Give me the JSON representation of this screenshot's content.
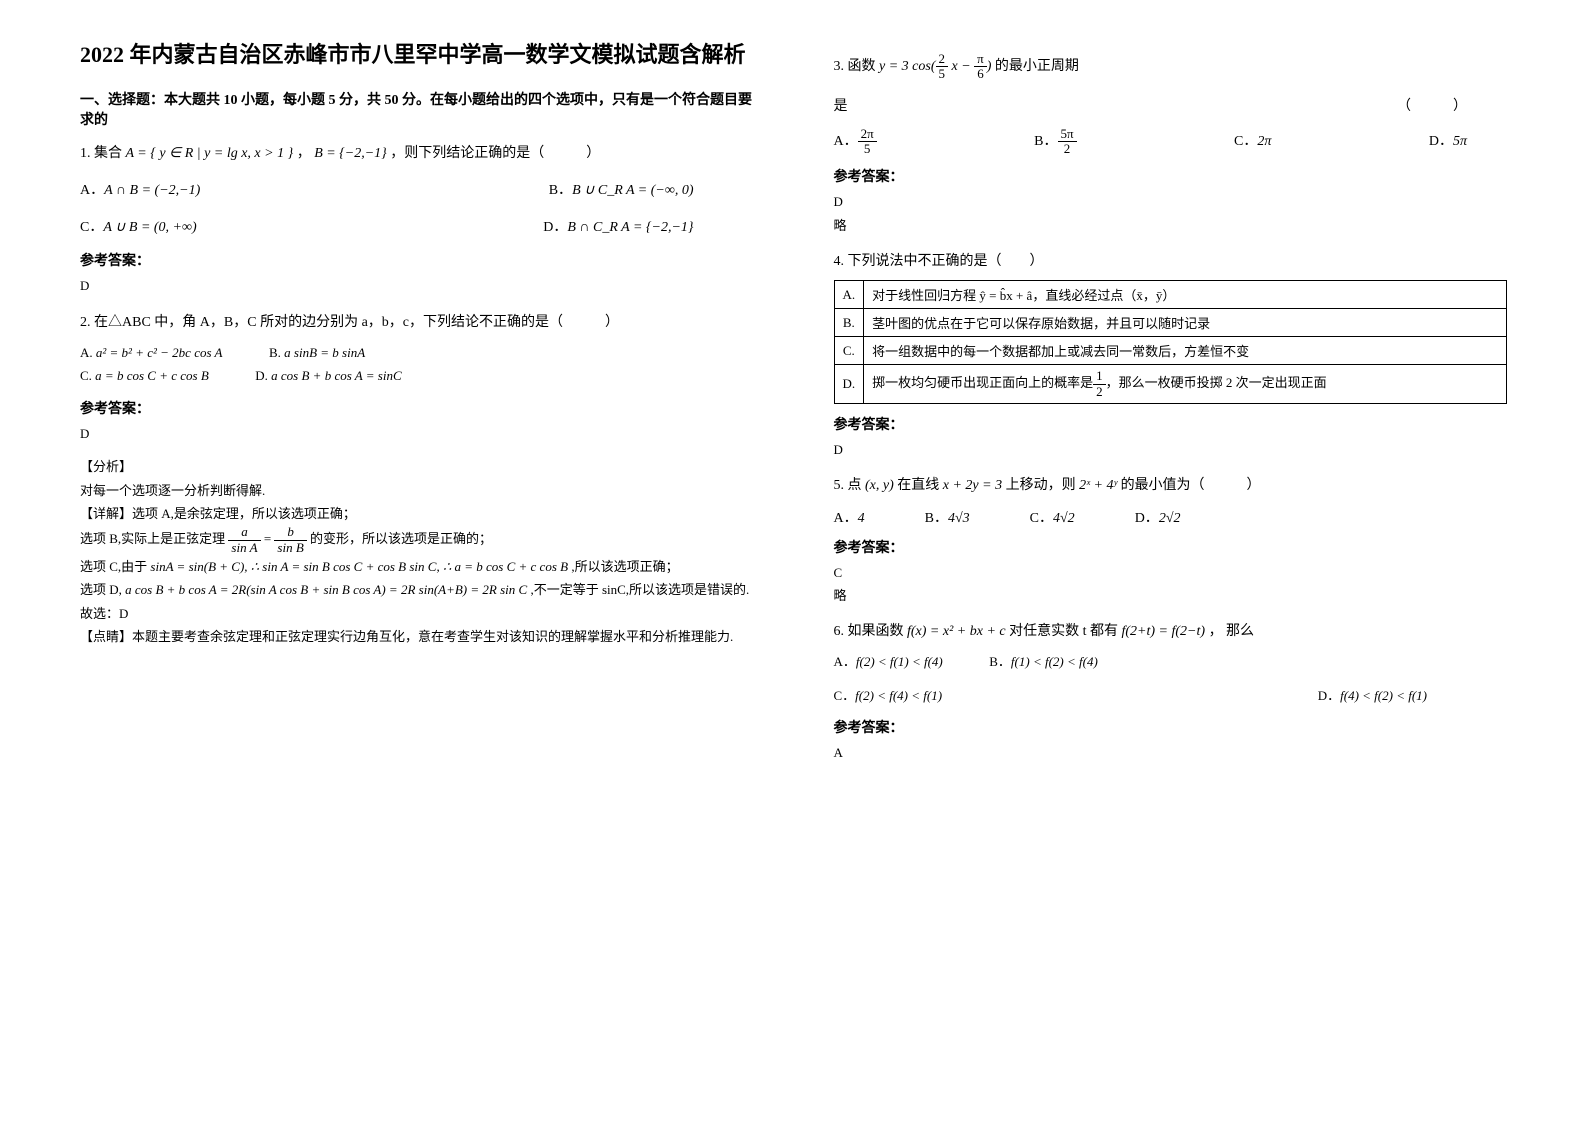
{
  "title": "2022 年内蒙古自治区赤峰市市八里罕中学高一数学文模拟试题含解析",
  "section1_head": "一、选择题：本大题共 10 小题，每小题 5 分，共 50 分。在每小题给出的四个选项中，只有是一个符合题目要求的",
  "q1": {
    "stem_pre": "1. 集合 ",
    "setA": "A = { y ∈ R | y = lg x, x > 1 }",
    "comma": "，",
    "setB": "B = {−2,−1}",
    "stem_post": "，则下列结论正确的是（　　　）",
    "optA_lbl": "A．",
    "optA": "A ∩ B = (−2,−1)",
    "optB_lbl": "B．",
    "optB": "B ∪ C_R A = (−∞, 0)",
    "optC_lbl": "C．",
    "optC": "A ∪ B = (0, +∞)",
    "optD_lbl": "D．",
    "optD": "B ∩ C_R A = {−2,−1}",
    "ans_label": "参考答案：",
    "ans": "D"
  },
  "q2": {
    "stem": "2. 在△ABC 中，角 A，B，C 所对的边分别为 a，b，c，下列结论不正确的是（　　　）",
    "optA_lbl": "A.",
    "optA": "a² = b² + c² − 2bc cos A",
    "optB_lbl": "B.",
    "optB": "a sinB = b sinA",
    "optC_lbl": "C.",
    "optC": "a = b cos C + c cos B",
    "optD_lbl": "D.",
    "optD": "a cos B + b cos A = sinC",
    "ans_label": "参考答案：",
    "ans": "D",
    "analysis_tag": "【分析】",
    "analysis_1": "对每一个选项逐一分析判断得解.",
    "detail_tag": "【详解】选项 A,是余弦定理，所以该选项正确；",
    "line_b_pre": "选项 B,实际上是正弦定理",
    "line_b_frac_a_n": "a",
    "line_b_frac_a_d": "sin A",
    "line_b_eq": " = ",
    "line_b_frac_b_n": "b",
    "line_b_frac_b_d": "sin B",
    "line_b_post": " 的变形，所以该选项是正确的；",
    "line_c_pre": "选项 C,由于 ",
    "line_c_math": "sinA = sin(B + C), ∴ sin A = sin B cos C + cos B sin C, ∴ a = b cos C + c cos B",
    "line_c_post": " ,所以该选项正确；",
    "line_d_pre": "选项 D, ",
    "line_d_math": "a cos B + b cos A = 2R(sin A cos B + sin B cos A) = 2R sin(A+B) = 2R sin C",
    "line_d_post": " ,不一定等于 sinC,所以该选项是错误的.",
    "so": "故选：D",
    "dianjing": "【点睛】本题主要考查余弦定理和正弦定理实行边角互化，意在考查学生对该知识的理解掌握水平和分析推理能力."
  },
  "q3": {
    "stem_pre": "3. 函数 ",
    "func_pre": "y = 3 cos(",
    "frac1_n": "2",
    "frac1_d": "5",
    "mid": " x − ",
    "frac2_n": "π",
    "frac2_d": "6",
    "func_post": ")",
    "stem_post": " 的最小正周期",
    "is": "是",
    "paren": "（　　　）",
    "optA_lbl": "A．",
    "optA_n": "2π",
    "optA_d": "5",
    "optB_lbl": "B．",
    "optB_n": "5π",
    "optB_d": "2",
    "optC_lbl": "C．",
    "optC": "2π",
    "optD_lbl": "D．",
    "optD": "5π",
    "ans_label": "参考答案：",
    "ans": "D",
    "omit": "略"
  },
  "q4": {
    "stem": "4. 下列说法中不正确的是（　　）",
    "rA_lbl": "A.",
    "rA": "对于线性回归方程 ŷ = b̂x + â，直线必经过点（x̄，ȳ）",
    "rB_lbl": "B.",
    "rB": "茎叶图的优点在于它可以保存原始数据，并且可以随时记录",
    "rC_lbl": "C.",
    "rC": "将一组数据中的每一个数据都加上或减去同一常数后，方差恒不变",
    "rD_lbl": "D.",
    "rD_pre": "掷一枚均匀硬币出现正面向上的概率是",
    "rD_frac_n": "1",
    "rD_frac_d": "2",
    "rD_post": "，那么一枚硬币投掷 2 次一定出现正面",
    "ans_label": "参考答案：",
    "ans": "D"
  },
  "q5": {
    "stem_pre": "5. 点 ",
    "pt": "(x, y)",
    "mid1": " 在直线 ",
    "line": "x + 2y = 3",
    "mid2": " 上移动，则 ",
    "expr": "2ˣ + 4ʸ",
    "stem_post": " 的最小值为（　　　）",
    "optA_lbl": "A．",
    "optA": "4",
    "optB_lbl": "B．",
    "optB": "4√3",
    "optC_lbl": "C．",
    "optC": "4√2",
    "optD_lbl": "D．",
    "optD": "2√2",
    "ans_label": "参考答案：",
    "ans": "C",
    "omit": "略"
  },
  "q6": {
    "stem_pre": "6. 如果函数 ",
    "fx": "f(x) = x² + bx + c",
    "mid1": " 对任意实数 t 都有 ",
    "cond": "f(2+t) = f(2−t)",
    "stem_post": "， 那么",
    "optA_lbl": "A．",
    "optA": "f(2) < f(1) < f(4)",
    "optB_lbl": "B．",
    "optB": "f(1) < f(2) < f(4)",
    "optC_lbl": "C．",
    "optC": "f(2) < f(4) < f(1)",
    "optD_lbl": "D．",
    "optD": "f(4) < f(2) < f(1)",
    "ans_label": "参考答案：",
    "ans": "A"
  }
}
